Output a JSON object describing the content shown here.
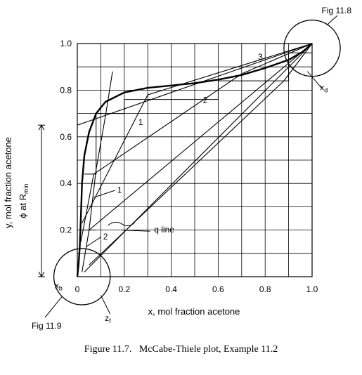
{
  "chart_data": {
    "type": "line",
    "xlabel": "x, mol fraction acetone",
    "ylabel": "y, mol fraction acetone",
    "xlim": [
      0,
      1.0
    ],
    "ylim": [
      0,
      1.0
    ],
    "grid": true,
    "x_ticks": [
      {
        "value": 0,
        "label": "0"
      },
      {
        "value": 0.2,
        "label": "0.2"
      },
      {
        "value": 0.4,
        "label": "0.4"
      },
      {
        "value": 0.6,
        "label": "0.6"
      },
      {
        "value": 0.8,
        "label": "0.8"
      },
      {
        "value": 1.0,
        "label": "1.0"
      }
    ],
    "y_ticks": [
      {
        "value": 0.2,
        "label": "0.2"
      },
      {
        "value": 0.4,
        "label": "0.4"
      },
      {
        "value": 0.6,
        "label": "0.6"
      },
      {
        "value": 0.8,
        "label": "0.8"
      },
      {
        "value": 1.0,
        "label": "1.0"
      }
    ],
    "series": [
      {
        "values": [
          [
            0,
            0
          ],
          [
            0.005,
            0.05
          ],
          [
            0.01,
            0.12
          ],
          [
            0.015,
            0.25
          ],
          [
            0.02,
            0.4
          ],
          [
            0.03,
            0.52
          ],
          [
            0.05,
            0.62
          ],
          [
            0.08,
            0.7
          ],
          [
            0.12,
            0.75
          ],
          [
            0.2,
            0.79
          ],
          [
            0.3,
            0.81
          ],
          [
            0.4,
            0.82
          ],
          [
            0.5,
            0.83
          ],
          [
            0.6,
            0.845
          ],
          [
            0.7,
            0.865
          ],
          [
            0.8,
            0.895
          ],
          [
            0.9,
            0.93
          ],
          [
            0.96,
            0.965
          ],
          [
            1.0,
            1.0
          ]
        ]
      },
      {
        "values": [
          [
            0.015,
            0.15
          ],
          [
            0.07,
            0.44
          ],
          [
            0.7,
            0.87
          ],
          [
            1.0,
            1.0
          ]
        ]
      },
      {
        "values": [
          [
            0.02,
            0.02
          ],
          [
            0.05,
            0.2
          ],
          [
            1.0,
            1.0
          ]
        ]
      },
      {
        "values": [
          [
            0.05,
            0.2
          ],
          [
            0.08,
            0.46
          ],
          [
            0.12,
            0.69
          ],
          [
            0.15,
            0.88
          ]
        ]
      },
      {
        "values": [
          [
            0,
            0.65
          ],
          [
            1.0,
            1.0
          ]
        ]
      },
      {
        "values": [
          [
            0.03,
            0.02
          ],
          [
            1.0,
            1.0
          ]
        ]
      },
      {
        "values": [
          [
            0.05,
            0.05
          ],
          [
            0.88,
            0.84
          ],
          [
            1.0,
            1.0
          ]
        ]
      },
      {
        "values": [
          [
            0.02,
            0.23
          ],
          [
            0.3,
            0.78
          ],
          [
            1.0,
            1.0
          ]
        ]
      }
    ],
    "steps": [
      {
        "values": [
          [
            0.03,
            0.44
          ],
          [
            0.08,
            0.44
          ],
          [
            0.08,
            0.7
          ],
          [
            0.2,
            0.7
          ],
          [
            0.2,
            0.76
          ]
        ]
      },
      {
        "values": [
          [
            0.2,
            0.76
          ],
          [
            0.6,
            0.76
          ],
          [
            0.6,
            0.84
          ],
          [
            0.9,
            0.84
          ],
          [
            0.9,
            0.96
          ],
          [
            1.0,
            0.96
          ]
        ]
      },
      {
        "values": [
          [
            0.015,
            0.2
          ],
          [
            0.08,
            0.2
          ]
        ]
      }
    ],
    "circles": [
      {
        "label": "Fig 11.9",
        "cx": 0.02,
        "cy": 0.0,
        "r": 0.12
      },
      {
        "label": "Fig 11.8",
        "cx": 1.0,
        "cy": 0.98,
        "r": 0.12
      }
    ],
    "annotations": [
      {
        "text": "1",
        "x": 0.27,
        "y": 0.65
      },
      {
        "text": "2",
        "x": 0.545,
        "y": 0.745
      },
      {
        "text": "3",
        "x": 0.78,
        "y": 0.93
      },
      {
        "text": "1",
        "x": 0.18,
        "y": 0.36
      },
      {
        "text": "2",
        "x": 0.12,
        "y": 0.16
      },
      {
        "text": "q line",
        "x": 0.37,
        "y": 0.19
      },
      {
        "text": "x",
        "sub": "d",
        "x": 1.05,
        "y": 0.8
      },
      {
        "text": "x",
        "sub": "b",
        "x": -0.08,
        "y": -0.05
      },
      {
        "text": "z",
        "sub": "f",
        "x": 0.13,
        "y": -0.19
      },
      {
        "text": "ϕ at R",
        "sub": "min",
        "side": "left"
      }
    ],
    "rmin_bracket": [
      0,
      0.65
    ]
  },
  "caption": {
    "number": "Figure 11.7.",
    "text": "McCabe-Thiele plot, Example 11.2"
  }
}
